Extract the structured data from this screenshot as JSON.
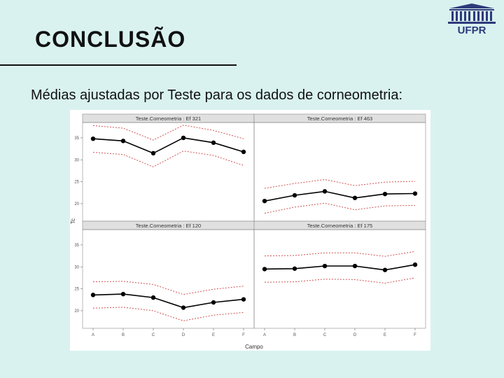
{
  "slide": {
    "title": "CONCLUSÃO",
    "subtitle": "Médias ajustadas por Teste para os dados de corneometria:"
  },
  "logo": {
    "text": "UFPR",
    "icon": "university-building-icon"
  },
  "colors": {
    "background": "#d9f2f0",
    "ci": "#d05050",
    "mean": "#000000",
    "strip": "#e0e0e0"
  },
  "chart_data": {
    "type": "line",
    "xlabel": "Campo",
    "ylabel": "Tc",
    "categories": [
      "A",
      "B",
      "C",
      "D",
      "E",
      "F"
    ],
    "yticks": [
      20,
      25,
      30,
      35
    ],
    "ylim": [
      16,
      38.5
    ],
    "grid": false,
    "panels": [
      {
        "title": "Teste.Corneometria : Ef 321",
        "row": 0,
        "col": 0,
        "mean": [
          34.8,
          34.3,
          31.5,
          35.0,
          33.9,
          31.8
        ],
        "upper": [
          37.8,
          37.2,
          34.5,
          37.9,
          36.7,
          34.8
        ],
        "lower": [
          31.7,
          31.2,
          28.4,
          32.0,
          31.0,
          28.7
        ]
      },
      {
        "title": "Teste.Corneometria : Ef 463",
        "row": 0,
        "col": 1,
        "mean": [
          20.6,
          21.9,
          22.8,
          21.3,
          22.2,
          22.3
        ],
        "upper": [
          23.5,
          24.6,
          25.5,
          24.1,
          24.9,
          25.1
        ],
        "lower": [
          17.8,
          19.2,
          20.1,
          18.6,
          19.5,
          19.6
        ]
      },
      {
        "title": "Teste.Corneometria : Ef 120",
        "row": 1,
        "col": 0,
        "mean": [
          23.6,
          23.8,
          23.0,
          20.7,
          21.9,
          22.6
        ],
        "upper": [
          26.6,
          26.7,
          26.0,
          23.7,
          24.9,
          25.6
        ],
        "lower": [
          20.6,
          20.8,
          20.0,
          17.7,
          19.0,
          19.6
        ]
      },
      {
        "title": "Teste.Corneometria : Ef 175",
        "row": 1,
        "col": 1,
        "mean": [
          29.5,
          29.6,
          30.2,
          30.2,
          29.3,
          30.5
        ],
        "upper": [
          32.5,
          32.6,
          33.2,
          33.2,
          32.4,
          33.5
        ],
        "lower": [
          26.5,
          26.6,
          27.2,
          27.1,
          26.3,
          27.5
        ]
      }
    ]
  }
}
